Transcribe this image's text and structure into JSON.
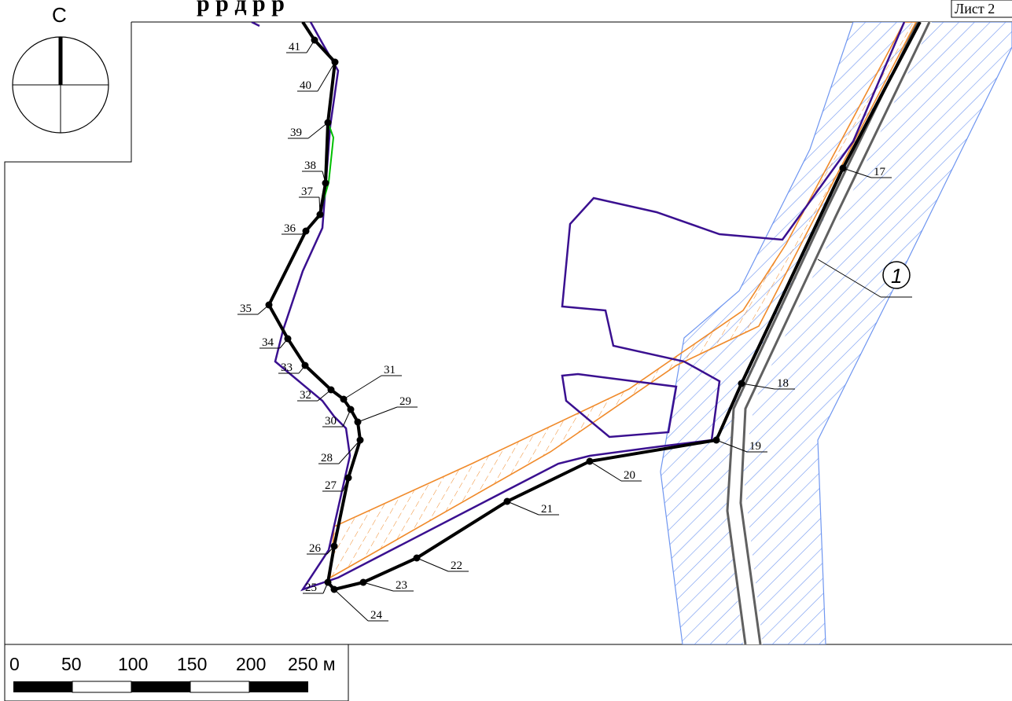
{
  "title_fragment": "р  р  д  р  р",
  "sheet_label": "Лист 2",
  "north_label": "С",
  "callout_label": "1",
  "scale_bar": {
    "ticks": [
      "0",
      "50",
      "100",
      "150",
      "200",
      "250 м"
    ]
  },
  "boundary_points": [
    {
      "id": "17"
    },
    {
      "id": "18"
    },
    {
      "id": "19"
    },
    {
      "id": "20"
    },
    {
      "id": "21"
    },
    {
      "id": "22"
    },
    {
      "id": "23"
    },
    {
      "id": "24"
    },
    {
      "id": "25"
    },
    {
      "id": "26"
    },
    {
      "id": "27"
    },
    {
      "id": "28"
    },
    {
      "id": "29"
    },
    {
      "id": "30"
    },
    {
      "id": "31"
    },
    {
      "id": "32"
    },
    {
      "id": "33"
    },
    {
      "id": "34"
    },
    {
      "id": "35"
    },
    {
      "id": "36"
    },
    {
      "id": "37"
    },
    {
      "id": "38"
    },
    {
      "id": "39"
    },
    {
      "id": "40"
    },
    {
      "id": "41"
    }
  ],
  "colors": {
    "boundary": "#000000",
    "cliff_line": "#3a1090",
    "orange_hatch": "#f08a2a",
    "blue_hatch": "#6f96f0",
    "road": "#606060",
    "green_segment": "#00c000"
  }
}
